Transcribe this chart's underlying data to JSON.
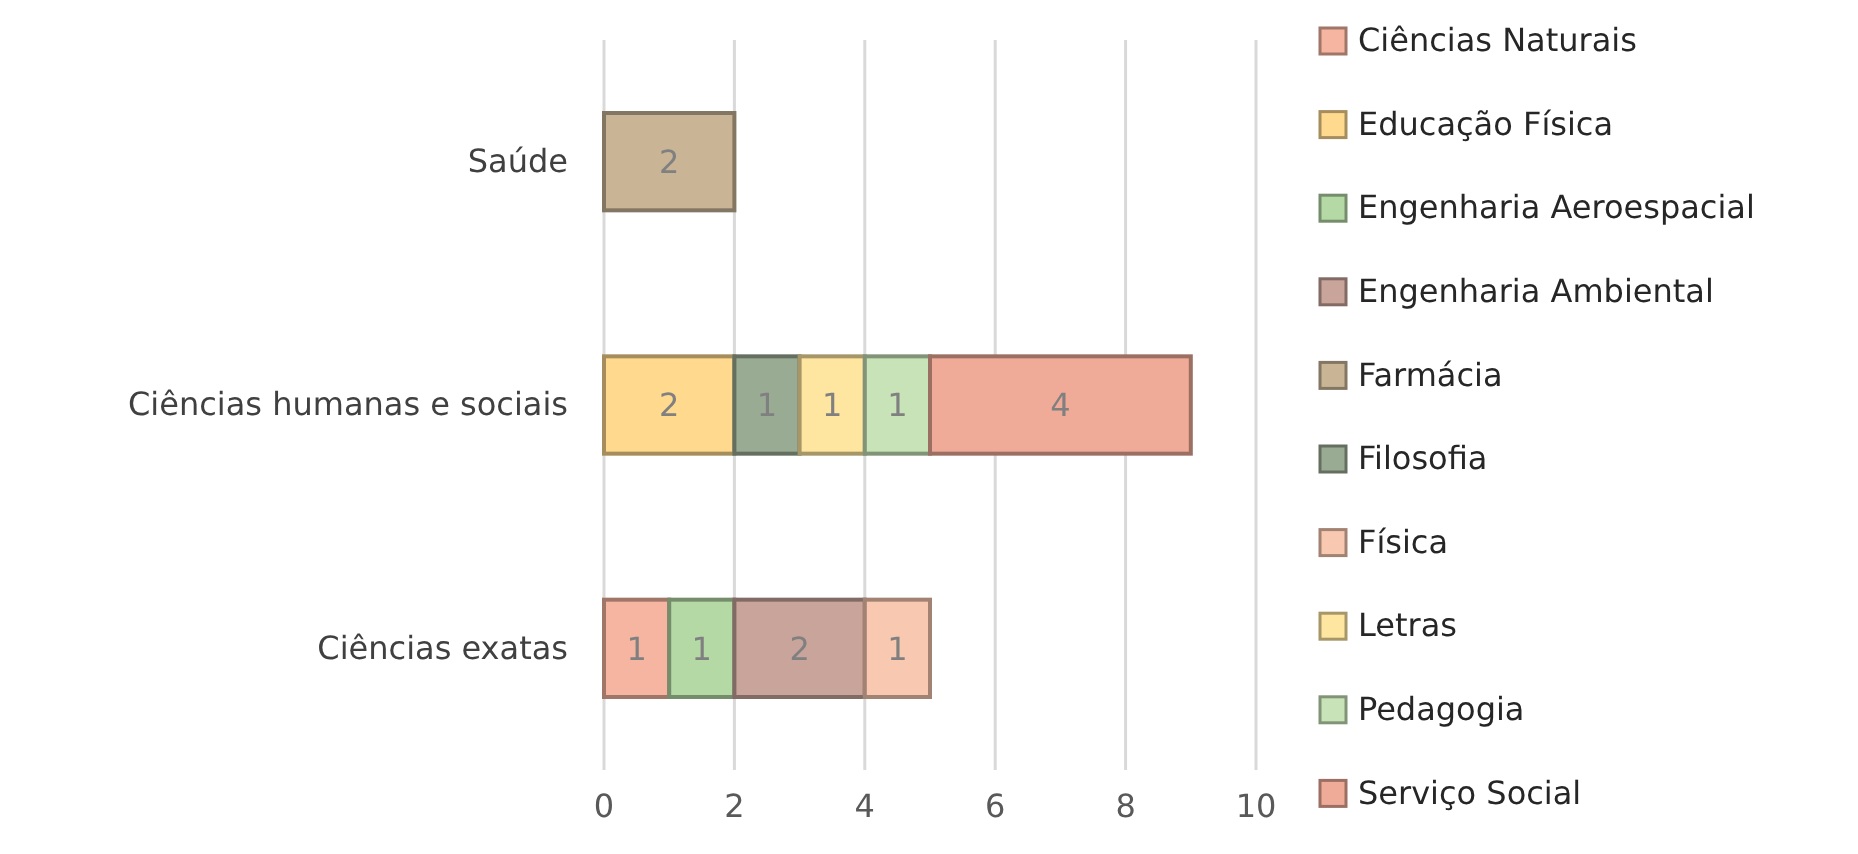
{
  "chart_data": {
    "type": "bar",
    "orientation": "horizontal",
    "stacked": true,
    "categories": [
      "Saúde",
      "Ciências humanas e sociais",
      "Ciências exatas"
    ],
    "series": [
      {
        "name": "Ciências Naturais",
        "color": "#f5b5a0",
        "values": [
          null,
          null,
          1
        ]
      },
      {
        "name": "Educação Física",
        "color": "#fed98e",
        "values": [
          null,
          2,
          null
        ]
      },
      {
        "name": "Engenharia Aeroespacial",
        "color": "#b5d9a5",
        "values": [
          null,
          null,
          1
        ]
      },
      {
        "name": "Engenharia Ambiental",
        "color": "#c8a49a",
        "values": [
          null,
          null,
          2
        ]
      },
      {
        "name": "Farmácia",
        "color": "#c9b596",
        "values": [
          2,
          null,
          null
        ]
      },
      {
        "name": "Filosofia",
        "color": "#9aab94",
        "values": [
          null,
          1,
          null
        ]
      },
      {
        "name": "Física",
        "color": "#f9c8b0",
        "values": [
          null,
          null,
          1
        ]
      },
      {
        "name": "Letras",
        "color": "#ffe6a0",
        "values": [
          null,
          1,
          null
        ]
      },
      {
        "name": "Pedagogia",
        "color": "#c8e3b8",
        "values": [
          null,
          1,
          null
        ]
      },
      {
        "name": "Serviço Social",
        "color": "#f0ab98",
        "values": [
          null,
          4,
          null
        ]
      }
    ],
    "xlim": [
      0,
      10
    ],
    "xticks": [
      0,
      2,
      4,
      6,
      8,
      10
    ],
    "grid": "x",
    "legend": "right",
    "data_labels": true
  }
}
